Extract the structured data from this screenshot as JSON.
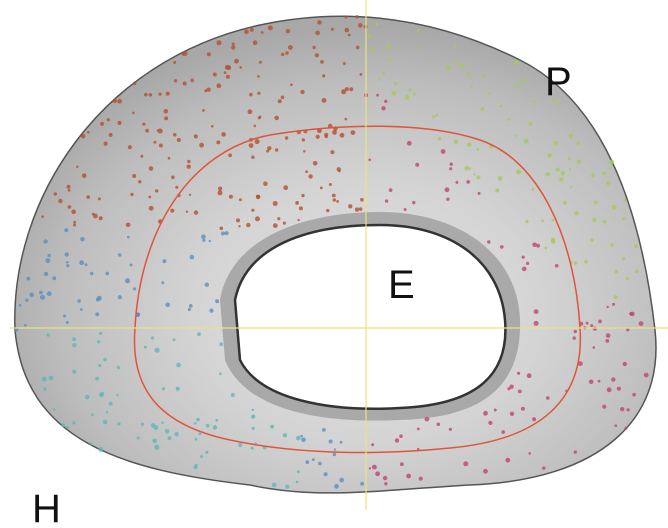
{
  "labels": [
    "P",
    "E",
    "H"
  ]
}
